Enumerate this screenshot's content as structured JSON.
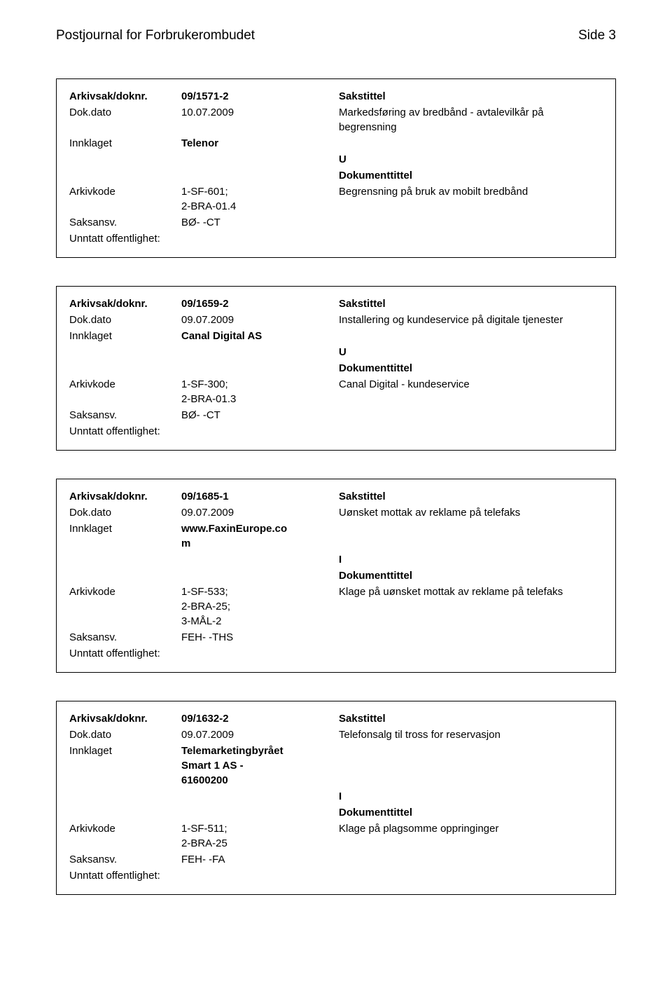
{
  "header": {
    "title": "Postjournal for Forbrukerombudet",
    "page_number": "Side 3"
  },
  "labels": {
    "arkivsak": "Arkivsak/doknr.",
    "dokdato": "Dok.dato",
    "innklaget": "Innklaget",
    "arkivkode": "Arkivkode",
    "saksansv": "Saksansv.",
    "unntatt": "Unntatt offentlighet:",
    "sakstittel": "Sakstittel",
    "dokumenttittel": "Dokumenttittel"
  },
  "records": [
    {
      "arkivsak": "09/1571-2",
      "dokdato": "10.07.2009",
      "innklaget": "Telenor",
      "arkivkode": "1-SF-601;\n2-BRA-01.4",
      "saksansv": "BØ- -CT",
      "unntatt": "",
      "sakstittel": "Markedsføring av bredbånd - avtalevilkår på begrensning",
      "direction": "U",
      "dokumenttittel_text": "Begrensning på bruk av mobilt bredbånd"
    },
    {
      "arkivsak": "09/1659-2",
      "dokdato": "09.07.2009",
      "innklaget": "Canal Digital AS",
      "arkivkode": "1-SF-300;\n2-BRA-01.3",
      "saksansv": "BØ- -CT",
      "unntatt": "",
      "sakstittel": "Installering og kundeservice på digitale tjenester",
      "direction": "U",
      "dokumenttittel_text": "Canal Digital - kundeservice"
    },
    {
      "arkivsak": "09/1685-1",
      "dokdato": "09.07.2009",
      "innklaget": "www.FaxinEurope.co\nm",
      "arkivkode": "1-SF-533;\n2-BRA-25;\n3-MÅL-2",
      "saksansv": "FEH- -THS",
      "unntatt": "",
      "sakstittel": "Uønsket mottak av reklame på telefaks",
      "direction": "I",
      "dokumenttittel_text": "Klage på uønsket mottak av reklame på telefaks"
    },
    {
      "arkivsak": "09/1632-2",
      "dokdato": "09.07.2009",
      "innklaget": "Telemarketingbyrået\nSmart 1 AS -\n61600200",
      "arkivkode": "1-SF-511;\n2-BRA-25",
      "saksansv": "FEH- -FA",
      "unntatt": "",
      "sakstittel": "Telefonsalg til tross for reservasjon",
      "direction": "I",
      "dokumenttittel_text": "Klage på plagsomme oppringinger"
    }
  ]
}
